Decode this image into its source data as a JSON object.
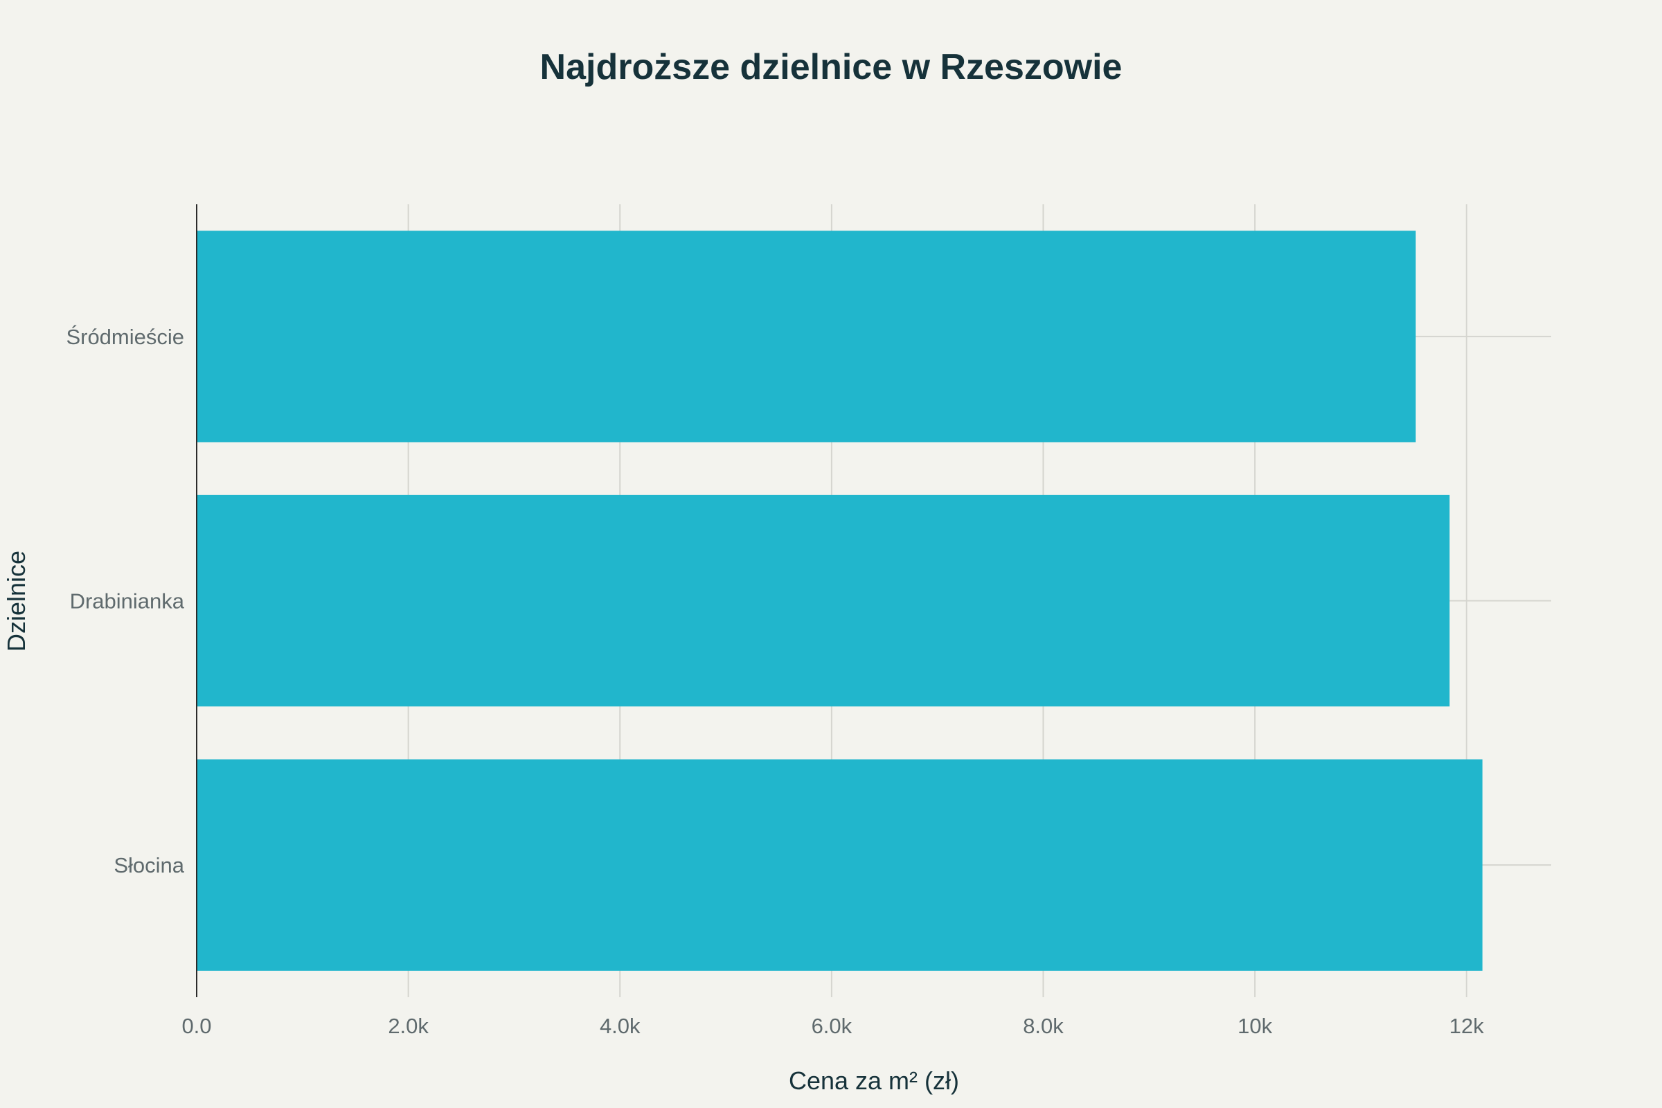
{
  "chart_data": {
    "type": "bar",
    "orientation": "horizontal",
    "title": "Najdroższe dzielnice w Rzeszowie",
    "xlabel": "Cena za m² (zł)",
    "ylabel": "Dzielnice",
    "categories": [
      "Śródmieście",
      "Drabinianka",
      "Słocina"
    ],
    "values": [
      11520,
      11840,
      12150
    ],
    "xlim": [
      0,
      12800
    ],
    "xticks": [
      0,
      2000,
      4000,
      6000,
      8000,
      10000,
      12000
    ],
    "xtick_labels": [
      "0.0",
      "2.0k",
      "4.0k",
      "6.0k",
      "8.0k",
      "10k",
      "12k"
    ],
    "grid": true,
    "legend": "none",
    "bar_color": "#21b6cc",
    "background_color": "#f3f3ee",
    "grid_color": "#d5d5cf",
    "title_color": "#16323a"
  }
}
